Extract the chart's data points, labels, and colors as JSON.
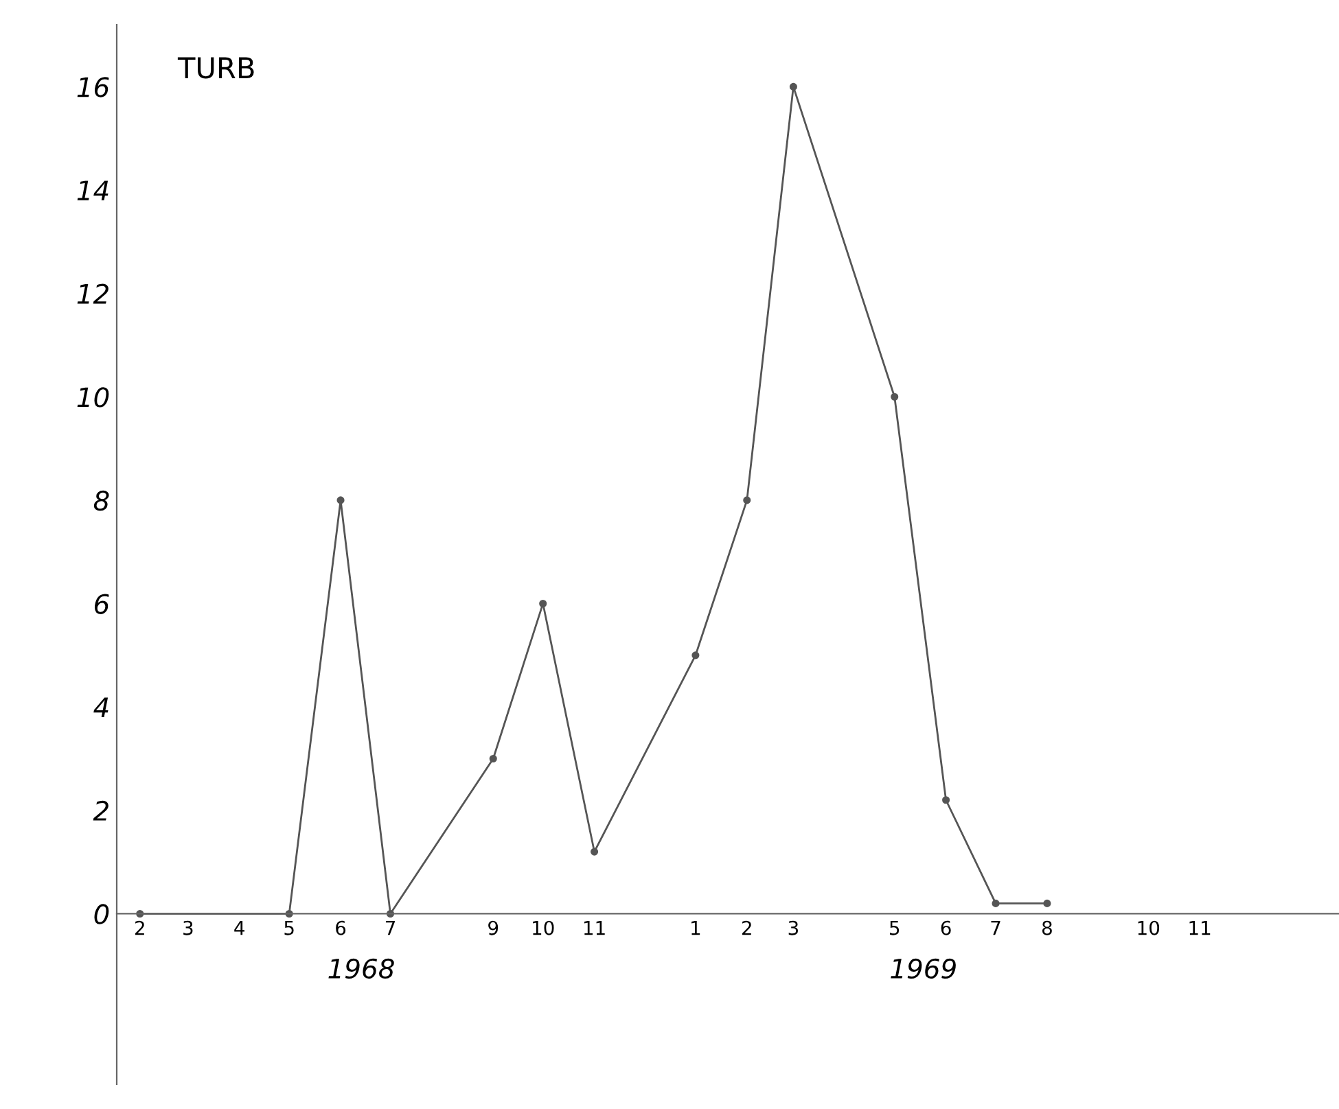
{
  "chart_data": {
    "type": "line",
    "title": "TURB",
    "x": [
      "1968-02",
      "1968-05",
      "1968-06",
      "1968-07",
      "1968-09",
      "1968-10",
      "1968-11",
      "1969-01",
      "1969-02",
      "1969-03",
      "1969-05",
      "1969-06",
      "1969-07",
      "1969-08"
    ],
    "series": [
      {
        "color": "#555555",
        "values": [
          0,
          0,
          8,
          0,
          3,
          6,
          1.2,
          5,
          8,
          16,
          10,
          2.2,
          0.2,
          0.2
        ]
      }
    ],
    "xlim": [
      "1968-01-18",
      "1970-01-24"
    ],
    "ylim": [
      -3.3,
      17.2
    ],
    "xticks": [
      {
        "value": "1968-02",
        "label": "2"
      },
      {
        "value": "1968-03",
        "label": "3"
      },
      {
        "value": "1968-04",
        "label": "4"
      },
      {
        "value": "1968-05",
        "label": "5"
      },
      {
        "value": "1968-06",
        "label": "6"
      },
      {
        "value": "1968-07",
        "label": "7"
      },
      {
        "value": "1968-09",
        "label": "9"
      },
      {
        "value": "1968-10",
        "label": "10"
      },
      {
        "value": "1968-11",
        "label": "11"
      },
      {
        "value": "1969-01",
        "label": "1"
      },
      {
        "value": "1969-02",
        "label": "2"
      },
      {
        "value": "1969-03",
        "label": "3"
      },
      {
        "value": "1969-05",
        "label": "5"
      },
      {
        "value": "1969-06",
        "label": "6"
      },
      {
        "value": "1969-07",
        "label": "7"
      },
      {
        "value": "1969-08",
        "label": "8"
      },
      {
        "value": "1969-10",
        "label": "10"
      },
      {
        "value": "1969-11",
        "label": "11"
      }
    ],
    "yticks": [
      0,
      2,
      4,
      6,
      8,
      10,
      12,
      14,
      16
    ],
    "annotations": [
      "1968",
      "1969"
    ],
    "marker": "circle",
    "line_style": "solid",
    "grid": false
  }
}
